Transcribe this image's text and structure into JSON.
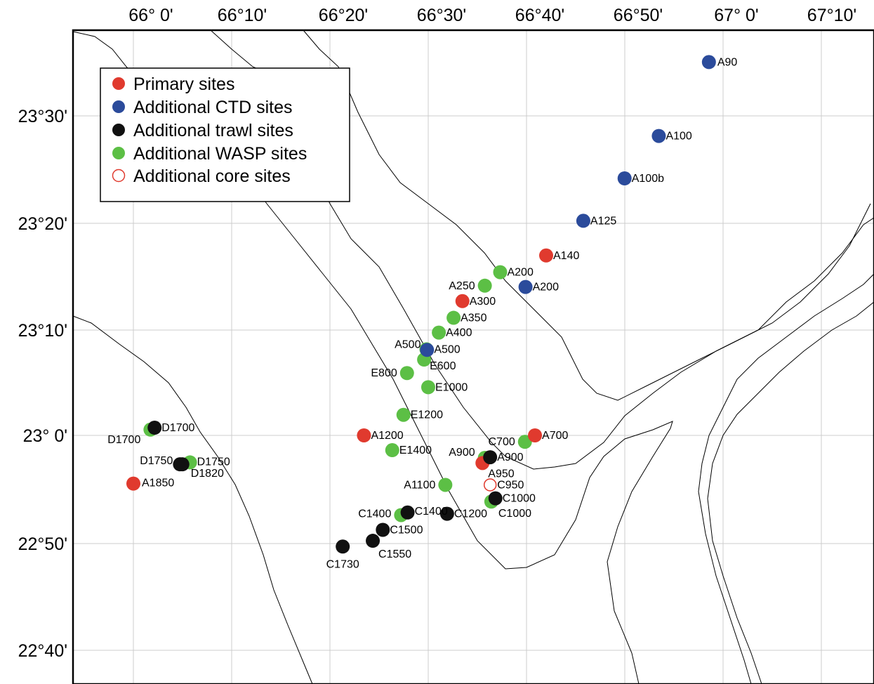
{
  "map": {
    "lon_ticks": [
      "66° 0'",
      "66°10'",
      "66°20'",
      "66°30'",
      "66°40'",
      "66°50'",
      "67° 0'",
      "67°10'"
    ],
    "lat_ticks": [
      "23°30'",
      "23°20'",
      "23°10'",
      "23° 0'",
      "22°50'",
      "22°40'"
    ],
    "legend": [
      {
        "label": "Primary sites",
        "color": "#e03a2e",
        "style": "filled"
      },
      {
        "label": "Additional CTD sites",
        "color": "#2b4b9b",
        "style": "filled"
      },
      {
        "label": "Additional trawl sites",
        "color": "#111111",
        "style": "filled"
      },
      {
        "label": "Additional WASP sites",
        "color": "#5cbf45",
        "style": "filled"
      },
      {
        "label": "Additional core sites",
        "color": "#e03a2e",
        "style": "open"
      }
    ],
    "colors": {
      "primary": "#e03a2e",
      "ctd": "#2b4b9b",
      "trawl": "#111111",
      "wasp": "#5cbf45",
      "core": "#e03a2e",
      "contour": "#000000",
      "grid": "#cccccc"
    },
    "sites": [
      {
        "id": "A90",
        "type": "ctd",
        "lon": 66.976,
        "lat": 23.581
      },
      {
        "id": "A100",
        "type": "ctd",
        "lon": 66.891,
        "lat": 23.466
      },
      {
        "id": "A100b",
        "type": "ctd",
        "lon": 66.833,
        "lat": 23.4
      },
      {
        "id": "A125",
        "type": "ctd",
        "lon": 66.763,
        "lat": 23.334
      },
      {
        "id": "A140",
        "type": "primary",
        "lon": 66.7,
        "lat": 23.28
      },
      {
        "id": "A200",
        "type": "wasp",
        "lon": 66.622,
        "lat": 23.254
      },
      {
        "id": "A200",
        "type": "ctd",
        "lon": 66.665,
        "lat": 23.231
      },
      {
        "id": "A250",
        "type": "wasp",
        "lon": 66.596,
        "lat": 23.233
      },
      {
        "id": "A300",
        "type": "primary",
        "lon": 66.558,
        "lat": 23.209
      },
      {
        "id": "A350",
        "type": "wasp",
        "lon": 66.543,
        "lat": 23.183
      },
      {
        "id": "A400",
        "type": "wasp",
        "lon": 66.518,
        "lat": 23.16
      },
      {
        "id": "A500",
        "type": "wasp",
        "lon": 66.497,
        "lat": 23.134
      },
      {
        "id": "A500",
        "type": "ctd",
        "lon": 66.498,
        "lat": 23.133
      },
      {
        "id": "E600",
        "type": "wasp",
        "lon": 66.493,
        "lat": 23.118
      },
      {
        "id": "E800",
        "type": "wasp",
        "lon": 66.464,
        "lat": 23.097
      },
      {
        "id": "E1000",
        "type": "wasp",
        "lon": 66.5,
        "lat": 23.075
      },
      {
        "id": "E1200",
        "type": "wasp",
        "lon": 66.458,
        "lat": 23.032
      },
      {
        "id": "A1200",
        "type": "primary",
        "lon": 66.391,
        "lat": 23.0
      },
      {
        "id": "A700",
        "type": "primary",
        "lon": 66.681,
        "lat": 23.0
      },
      {
        "id": "C700",
        "type": "wasp",
        "lon": 66.664,
        "lat": 22.99
      },
      {
        "id": "E1400",
        "type": "wasp",
        "lon": 66.439,
        "lat": 22.977
      },
      {
        "id": "A900",
        "type": "wasp",
        "lon": 66.596,
        "lat": 22.965
      },
      {
        "id": "A900",
        "type": "trawl",
        "lon": 66.605,
        "lat": 22.966
      },
      {
        "id": "A950",
        "type": "primary",
        "lon": 66.592,
        "lat": 22.957
      },
      {
        "id": "A1100",
        "type": "wasp",
        "lon": 66.529,
        "lat": 22.923
      },
      {
        "id": "C950",
        "type": "core",
        "lon": 66.605,
        "lat": 22.923
      },
      {
        "id": "C1000",
        "type": "wasp",
        "lon": 66.607,
        "lat": 22.897
      },
      {
        "id": "C1000",
        "type": "trawl",
        "lon": 66.614,
        "lat": 22.902
      },
      {
        "id": "C1200",
        "type": "trawl",
        "lon": 66.532,
        "lat": 22.878
      },
      {
        "id": "C1400",
        "type": "trawl",
        "lon": 66.465,
        "lat": 22.88
      },
      {
        "id": "C1400",
        "type": "wasp",
        "lon": 66.454,
        "lat": 22.876
      },
      {
        "id": "C1500",
        "type": "trawl",
        "lon": 66.423,
        "lat": 22.853
      },
      {
        "id": "C1550",
        "type": "trawl",
        "lon": 66.406,
        "lat": 22.836
      },
      {
        "id": "C1730",
        "type": "trawl",
        "lon": 66.355,
        "lat": 22.827
      },
      {
        "id": "D1700",
        "type": "wasp",
        "lon": 66.029,
        "lat": 23.009
      },
      {
        "id": "D1700",
        "type": "trawl",
        "lon": 66.036,
        "lat": 23.012
      },
      {
        "id": "D1750",
        "type": "wasp",
        "lon": 66.096,
        "lat": 22.958
      },
      {
        "id": "D1750",
        "type": "trawl",
        "lon": 66.079,
        "lat": 22.955
      },
      {
        "id": "D1820",
        "type": "trawl",
        "lon": 66.083,
        "lat": 22.955
      },
      {
        "id": "A1850",
        "type": "primary",
        "lon": 66.0,
        "lat": 22.925
      }
    ]
  }
}
